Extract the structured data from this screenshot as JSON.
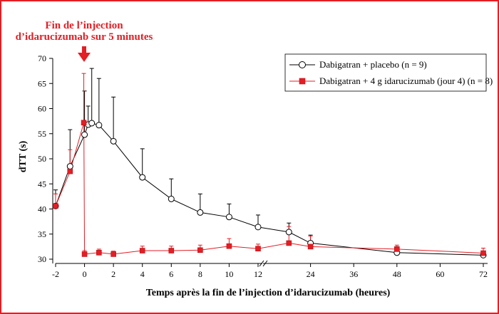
{
  "chart_data": {
    "type": "line",
    "xlabel": "Temps après la fin de l’injection d’idarucizumab (heures)",
    "ylabel": "dTT (s)",
    "ylim": [
      30,
      70
    ],
    "yticks": [
      30,
      35,
      40,
      45,
      50,
      55,
      60,
      65,
      70
    ],
    "xticks_left": [
      "-2",
      "0",
      "2",
      "4",
      "6",
      "8",
      "10",
      "12"
    ],
    "xticks_right": [
      "24",
      "36",
      "48",
      "60",
      "72"
    ],
    "axis_break_between": [
      12,
      24
    ],
    "annotation": {
      "line1": "Fin de l’injection",
      "line2": "d’idarucizumab sur 5 minutes"
    },
    "legend_position": "top-right",
    "series": [
      {
        "name": "Dabigatran + placebo (n = 9)",
        "color": "#000000",
        "marker": "open-circle",
        "x": [
          -2,
          -1,
          0,
          0.25,
          0.5,
          1,
          2,
          4,
          6,
          8,
          10,
          12,
          18,
          24,
          48,
          72
        ],
        "y": [
          40.6,
          48.5,
          54.8,
          56.8,
          57.1,
          56.7,
          53.5,
          46.3,
          42.0,
          39.3,
          38.4,
          36.4,
          35.4,
          33.2,
          31.3,
          30.8
        ],
        "error_upper": [
          43.8,
          55.8,
          63.5,
          60.5,
          68.0,
          66.0,
          62.3,
          52.0,
          46.0,
          43.0,
          41.0,
          38.8,
          37.2,
          34.8,
          32.5,
          31.5
        ]
      },
      {
        "name": "Dabigatran + 4 g idarucizumab (jour 4) (n = 8)",
        "color": "#e31e24",
        "marker": "filled-square",
        "x": [
          -2,
          -1,
          -0.05,
          0,
          1,
          2,
          4,
          6,
          8,
          10,
          12,
          18,
          24,
          48,
          72
        ],
        "y": [
          40.6,
          47.5,
          57.2,
          31.0,
          31.3,
          31.0,
          31.7,
          31.7,
          31.8,
          32.6,
          32.1,
          33.2,
          32.5,
          32.0,
          31.2
        ],
        "error_upper": [
          43.0,
          51.8,
          67.0,
          31.7,
          32.0,
          31.6,
          32.6,
          32.6,
          32.8,
          34.1,
          33.0,
          36.5,
          34.6,
          32.8,
          32.2
        ]
      }
    ]
  }
}
